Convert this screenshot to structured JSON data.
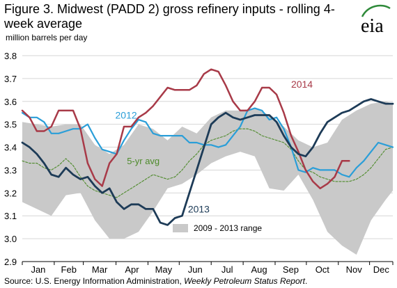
{
  "title": "Figure 3. Midwest (PADD 2) gross refinery inputs - rolling 4-week average",
  "subtitle": "million barrels per day",
  "logo_text": "eia",
  "source": {
    "prefix": "Source: U.S. Energy Information Administration, ",
    "publication": "Weekly Petroleum Status Report",
    "suffix": "."
  },
  "colors": {
    "s2014": "#a83a48",
    "s2012": "#2a9ed8",
    "s2013": "#1d3b57",
    "avg": "#4d8a2a",
    "range": "#c9c9c9",
    "logo_arc": "#2f8a3a"
  },
  "chart_data": {
    "type": "area",
    "xlabel": "",
    "ylabel": "million barrels per day",
    "x_unit": "week of year",
    "xlim": [
      1,
      52
    ],
    "ylim": [
      2.9,
      3.8
    ],
    "yticks": [
      "2.9",
      "3.0",
      "3.1",
      "3.2",
      "3.3",
      "3.4",
      "3.5",
      "3.6",
      "3.7",
      "3.8"
    ],
    "month_labels": [
      "Jan",
      "Feb",
      "Mar",
      "Apr",
      "May",
      "Jun",
      "Jul",
      "Aug",
      "Sep",
      "Oct",
      "Nov",
      "Dec"
    ],
    "range": {
      "name": "2009 - 2013 range",
      "x": [
        1,
        3,
        5,
        7,
        9,
        11,
        13,
        15,
        17,
        19,
        21,
        23,
        25,
        27,
        29,
        31,
        33,
        35,
        37,
        39,
        41,
        43,
        45,
        47,
        49,
        51,
        52
      ],
      "low": [
        3.16,
        3.13,
        3.1,
        3.19,
        3.2,
        3.08,
        3.0,
        3.0,
        3.03,
        3.12,
        3.22,
        3.24,
        3.28,
        3.33,
        3.36,
        3.38,
        3.36,
        3.22,
        3.21,
        3.28,
        3.17,
        3.03,
        2.97,
        2.93,
        3.08,
        3.17,
        3.21
      ],
      "high": [
        3.51,
        3.5,
        3.49,
        3.5,
        3.5,
        3.41,
        3.37,
        3.41,
        3.5,
        3.48,
        3.43,
        3.49,
        3.46,
        3.53,
        3.56,
        3.56,
        3.57,
        3.54,
        3.49,
        3.43,
        3.4,
        3.42,
        3.52,
        3.56,
        3.59,
        3.6,
        3.59
      ]
    },
    "series": [
      {
        "name": "2014",
        "x": [
          1,
          2,
          3,
          4,
          5,
          6,
          7,
          8,
          9,
          10,
          11,
          12,
          13,
          14,
          15,
          16,
          17,
          18,
          19,
          20,
          21,
          22,
          23,
          24,
          25,
          26,
          27,
          28,
          29,
          30,
          31,
          32,
          33,
          34,
          35,
          36,
          37,
          38,
          39,
          40,
          41,
          42,
          43,
          44,
          45,
          46
        ],
        "values": [
          3.56,
          3.53,
          3.47,
          3.47,
          3.49,
          3.56,
          3.56,
          3.56,
          3.48,
          3.33,
          3.26,
          3.23,
          3.33,
          3.37,
          3.49,
          3.49,
          3.53,
          3.55,
          3.58,
          3.62,
          3.66,
          3.65,
          3.65,
          3.65,
          3.67,
          3.72,
          3.74,
          3.73,
          3.67,
          3.6,
          3.56,
          3.56,
          3.6,
          3.66,
          3.66,
          3.63,
          3.55,
          3.45,
          3.38,
          3.3,
          3.25,
          3.22,
          3.24,
          3.27,
          3.34,
          3.34
        ]
      },
      {
        "name": "2012",
        "x": [
          1,
          2,
          3,
          4,
          5,
          6,
          7,
          8,
          9,
          10,
          11,
          12,
          13,
          14,
          15,
          16,
          17,
          18,
          19,
          20,
          21,
          22,
          23,
          24,
          25,
          26,
          27,
          28,
          29,
          30,
          31,
          32,
          33,
          34,
          35,
          36,
          37,
          38,
          39,
          40,
          41,
          42,
          43,
          44,
          45,
          46,
          47,
          48,
          49,
          50,
          51,
          52
        ],
        "values": [
          3.55,
          3.53,
          3.53,
          3.51,
          3.46,
          3.46,
          3.47,
          3.48,
          3.48,
          3.5,
          3.44,
          3.39,
          3.38,
          3.37,
          3.43,
          3.48,
          3.52,
          3.51,
          3.46,
          3.45,
          3.45,
          3.45,
          3.45,
          3.42,
          3.42,
          3.41,
          3.41,
          3.4,
          3.41,
          3.45,
          3.49,
          3.56,
          3.57,
          3.56,
          3.52,
          3.53,
          3.48,
          3.4,
          3.3,
          3.29,
          3.31,
          3.3,
          3.3,
          3.3,
          3.28,
          3.27,
          3.31,
          3.34,
          3.38,
          3.42,
          3.41,
          3.4
        ]
      },
      {
        "name": "2013",
        "x": [
          1,
          2,
          3,
          4,
          5,
          6,
          7,
          8,
          9,
          10,
          11,
          12,
          13,
          14,
          15,
          16,
          17,
          18,
          19,
          20,
          21,
          22,
          23,
          24,
          25,
          26,
          27,
          28,
          29,
          30,
          31,
          32,
          33,
          34,
          35,
          36,
          37,
          38,
          39,
          40,
          41,
          42,
          43,
          44,
          45,
          46,
          47,
          48,
          49,
          50,
          51,
          52
        ],
        "values": [
          3.42,
          3.4,
          3.37,
          3.33,
          3.28,
          3.27,
          3.31,
          3.28,
          3.26,
          3.27,
          3.23,
          3.2,
          3.22,
          3.16,
          3.13,
          3.15,
          3.15,
          3.13,
          3.13,
          3.07,
          3.06,
          3.09,
          3.1,
          3.2,
          3.3,
          3.4,
          3.5,
          3.53,
          3.55,
          3.53,
          3.52,
          3.53,
          3.54,
          3.54,
          3.54,
          3.51,
          3.45,
          3.4,
          3.37,
          3.36,
          3.4,
          3.46,
          3.51,
          3.53,
          3.55,
          3.56,
          3.58,
          3.6,
          3.61,
          3.6,
          3.59,
          3.59
        ]
      },
      {
        "name": "5-yr avg",
        "x": [
          1,
          2,
          3,
          4,
          5,
          6,
          7,
          8,
          9,
          10,
          11,
          12,
          13,
          14,
          15,
          16,
          17,
          18,
          19,
          20,
          21,
          22,
          23,
          24,
          25,
          26,
          27,
          28,
          29,
          30,
          31,
          32,
          33,
          34,
          35,
          36,
          37,
          38,
          39,
          40,
          41,
          42,
          43,
          44,
          45,
          46,
          47,
          48,
          49,
          50,
          51,
          52
        ],
        "values": [
          3.34,
          3.33,
          3.33,
          3.31,
          3.3,
          3.32,
          3.35,
          3.32,
          3.27,
          3.23,
          3.21,
          3.2,
          3.19,
          3.18,
          3.2,
          3.22,
          3.24,
          3.26,
          3.28,
          3.27,
          3.26,
          3.27,
          3.3,
          3.34,
          3.37,
          3.41,
          3.43,
          3.44,
          3.45,
          3.47,
          3.48,
          3.48,
          3.47,
          3.45,
          3.44,
          3.43,
          3.42,
          3.39,
          3.34,
          3.3,
          3.29,
          3.27,
          3.26,
          3.25,
          3.25,
          3.25,
          3.26,
          3.28,
          3.31,
          3.35,
          3.39,
          3.4
        ]
      }
    ],
    "series_labels": {
      "s2014": "2014",
      "s2012": "2012",
      "s2013": "2013",
      "avg": "5-yr avg"
    },
    "legend": {
      "label": "2009 - 2013 range",
      "placement": "bottom-right"
    }
  }
}
